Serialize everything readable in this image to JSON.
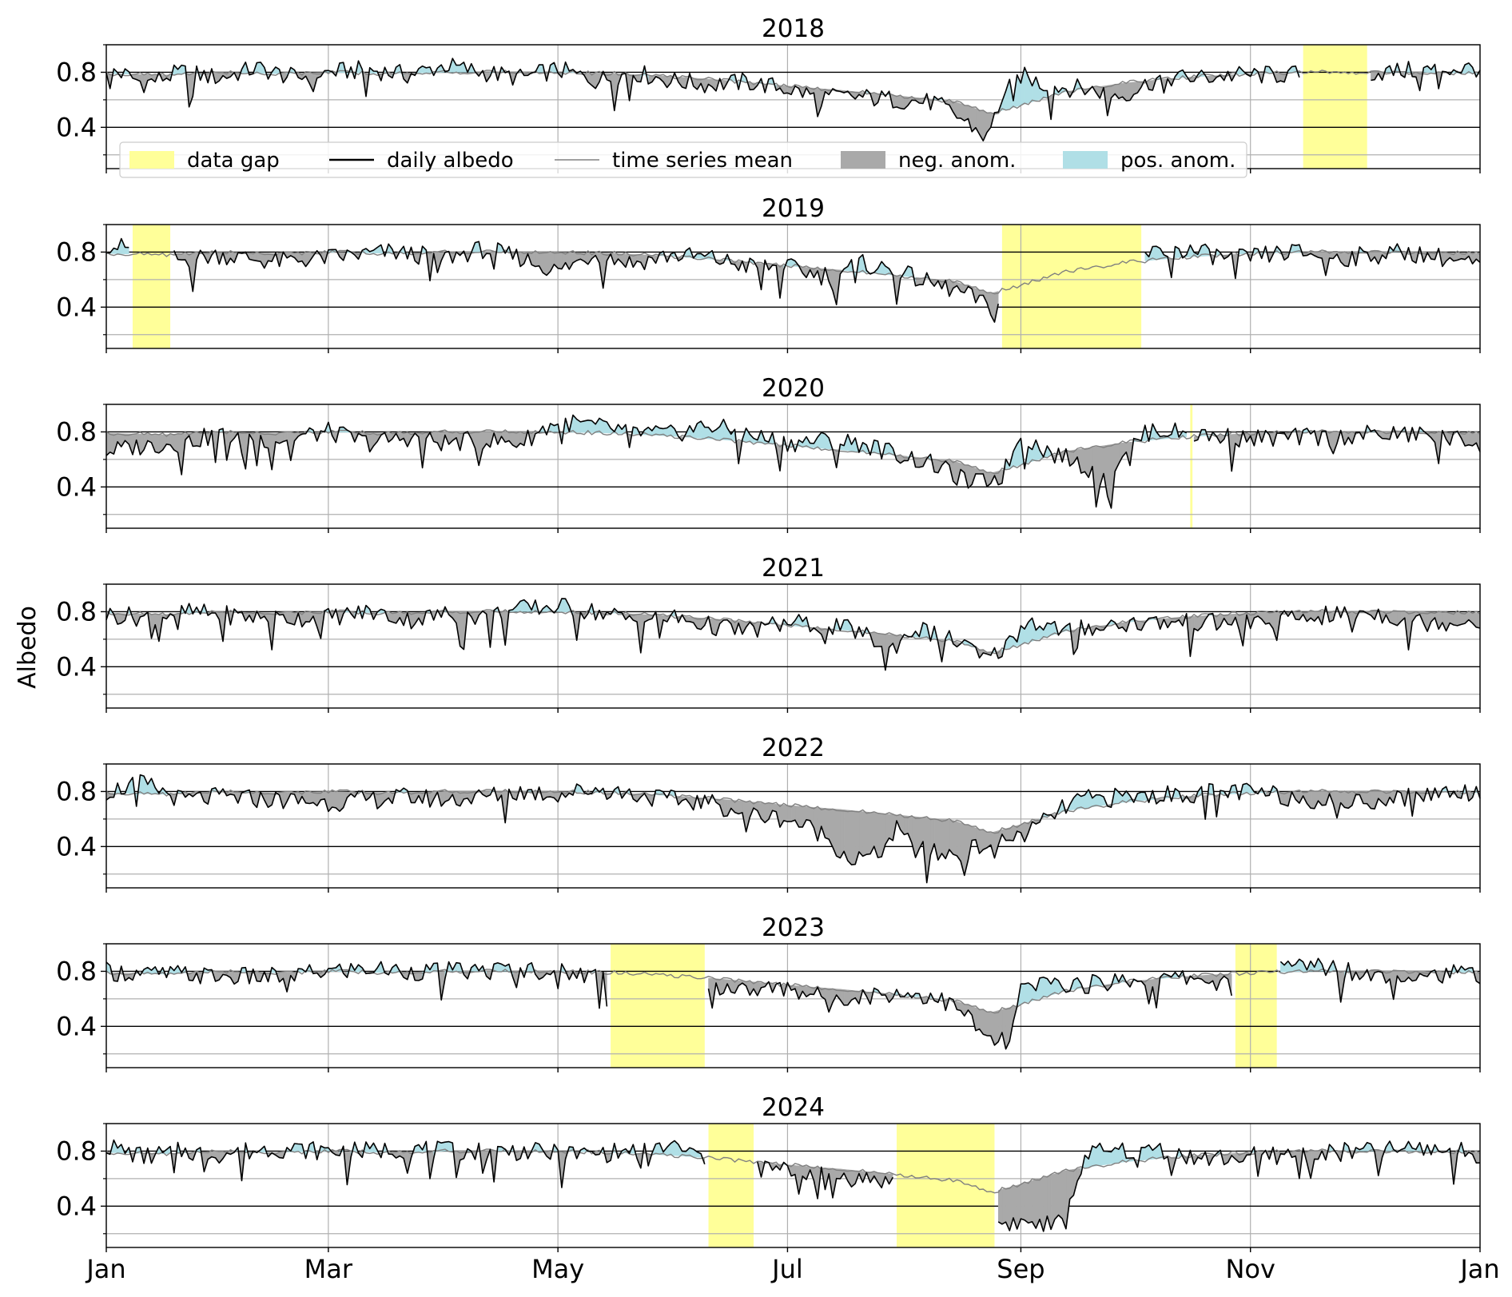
{
  "figure": {
    "ylabel": "Albedo",
    "month_ticks": [
      "Jan",
      "Mar",
      "May",
      "Jul",
      "Sep",
      "Nov",
      "Jan"
    ],
    "month_tick_days": [
      0,
      59,
      120,
      181,
      243,
      304,
      365
    ],
    "ytick_labels": [
      "0.8",
      "0.4"
    ],
    "ytick_values": [
      0.8,
      0.4
    ],
    "minor_grid_values": [
      0.2,
      0.6,
      1.0
    ],
    "ylim": [
      0.1,
      1.0
    ]
  },
  "legend": {
    "placement": "inside first panel, lower area",
    "items": [
      {
        "key": "gap",
        "label": "data gap"
      },
      {
        "key": "daily",
        "label": "daily albedo"
      },
      {
        "key": "mean",
        "label": "time series mean"
      },
      {
        "key": "neg",
        "label": "neg. anom."
      },
      {
        "key": "pos",
        "label": "pos. anom."
      }
    ]
  },
  "colors": {
    "gap": "#ffff99",
    "daily": "#000000",
    "mean": "#808080",
    "neg": "#a9a9a9",
    "pos": "#b0dfe6",
    "grid": "#b0b0b0"
  },
  "chart_data": {
    "type": "area",
    "xlabel": "",
    "ylabel": "Albedo",
    "x_unit": "day of year",
    "ylim": [
      0.1,
      1.0
    ],
    "grid": true,
    "mean_series": [
      [
        0,
        0.79
      ],
      [
        15,
        0.78
      ],
      [
        30,
        0.8
      ],
      [
        45,
        0.79
      ],
      [
        59,
        0.8
      ],
      [
        75,
        0.79
      ],
      [
        90,
        0.8
      ],
      [
        105,
        0.8
      ],
      [
        120,
        0.8
      ],
      [
        135,
        0.79
      ],
      [
        150,
        0.77
      ],
      [
        165,
        0.74
      ],
      [
        181,
        0.7
      ],
      [
        195,
        0.67
      ],
      [
        210,
        0.63
      ],
      [
        225,
        0.59
      ],
      [
        235,
        0.5
      ],
      [
        243,
        0.56
      ],
      [
        255,
        0.66
      ],
      [
        270,
        0.72
      ],
      [
        285,
        0.76
      ],
      [
        304,
        0.79
      ],
      [
        320,
        0.8
      ],
      [
        335,
        0.8
      ],
      [
        350,
        0.8
      ],
      [
        365,
        0.79
      ]
    ],
    "panels": [
      {
        "year": "2018",
        "gaps": [
          [
            318,
            335
          ]
        ],
        "daily": [
          [
            0,
            0.84
          ],
          [
            10,
            0.72
          ],
          [
            20,
            0.8
          ],
          [
            30,
            0.76
          ],
          [
            40,
            0.83
          ],
          [
            50,
            0.76
          ],
          [
            59,
            0.8
          ],
          [
            70,
            0.82
          ],
          [
            80,
            0.78
          ],
          [
            90,
            0.85
          ],
          [
            100,
            0.8
          ],
          [
            110,
            0.76
          ],
          [
            120,
            0.82
          ],
          [
            130,
            0.74
          ],
          [
            140,
            0.8
          ],
          [
            150,
            0.74
          ],
          [
            160,
            0.71
          ],
          [
            170,
            0.73
          ],
          [
            181,
            0.68
          ],
          [
            190,
            0.62
          ],
          [
            200,
            0.62
          ],
          [
            210,
            0.6
          ],
          [
            220,
            0.58
          ],
          [
            228,
            0.45
          ],
          [
            234,
            0.32
          ],
          [
            238,
            0.62
          ],
          [
            243,
            0.78
          ],
          [
            250,
            0.7
          ],
          [
            260,
            0.68
          ],
          [
            270,
            0.63
          ],
          [
            280,
            0.76
          ],
          [
            290,
            0.76
          ],
          [
            300,
            0.78
          ],
          [
            310,
            0.78
          ],
          [
            340,
            0.8
          ],
          [
            350,
            0.82
          ],
          [
            365,
            0.83
          ]
        ]
      },
      {
        "year": "2019",
        "gaps": [
          [
            7,
            17
          ],
          [
            238,
            275
          ]
        ],
        "daily": [
          [
            0,
            0.86
          ],
          [
            20,
            0.74
          ],
          [
            30,
            0.78
          ],
          [
            45,
            0.73
          ],
          [
            59,
            0.76
          ],
          [
            75,
            0.8
          ],
          [
            90,
            0.76
          ],
          [
            100,
            0.82
          ],
          [
            110,
            0.76
          ],
          [
            120,
            0.66
          ],
          [
            130,
            0.79
          ],
          [
            140,
            0.72
          ],
          [
            150,
            0.78
          ],
          [
            160,
            0.76
          ],
          [
            170,
            0.7
          ],
          [
            181,
            0.69
          ],
          [
            190,
            0.63
          ],
          [
            200,
            0.72
          ],
          [
            210,
            0.66
          ],
          [
            218,
            0.58
          ],
          [
            226,
            0.52
          ],
          [
            232,
            0.45
          ],
          [
            236,
            0.35
          ],
          [
            238,
            0.48
          ],
          [
            275,
            0.78
          ],
          [
            285,
            0.82
          ],
          [
            300,
            0.75
          ],
          [
            315,
            0.8
          ],
          [
            330,
            0.76
          ],
          [
            345,
            0.8
          ],
          [
            355,
            0.76
          ],
          [
            365,
            0.7
          ]
        ]
      },
      {
        "year": "2020",
        "gaps": [
          [
            288,
            288.6
          ]
        ],
        "daily": [
          [
            0,
            0.66
          ],
          [
            10,
            0.7
          ],
          [
            20,
            0.72
          ],
          [
            30,
            0.78
          ],
          [
            45,
            0.74
          ],
          [
            59,
            0.8
          ],
          [
            70,
            0.72
          ],
          [
            80,
            0.76
          ],
          [
            90,
            0.72
          ],
          [
            100,
            0.74
          ],
          [
            110,
            0.72
          ],
          [
            120,
            0.88
          ],
          [
            130,
            0.84
          ],
          [
            140,
            0.8
          ],
          [
            150,
            0.78
          ],
          [
            160,
            0.85
          ],
          [
            170,
            0.78
          ],
          [
            181,
            0.72
          ],
          [
            190,
            0.74
          ],
          [
            200,
            0.72
          ],
          [
            210,
            0.64
          ],
          [
            220,
            0.56
          ],
          [
            230,
            0.42
          ],
          [
            238,
            0.48
          ],
          [
            243,
            0.78
          ],
          [
            250,
            0.66
          ],
          [
            256,
            0.6
          ],
          [
            262,
            0.52
          ],
          [
            266,
            0.4
          ],
          [
            270,
            0.66
          ],
          [
            278,
            0.82
          ],
          [
            290,
            0.78
          ],
          [
            304,
            0.75
          ],
          [
            320,
            0.76
          ],
          [
            335,
            0.78
          ],
          [
            350,
            0.78
          ],
          [
            365,
            0.72
          ]
        ]
      },
      {
        "year": "2021",
        "gaps": [],
        "daily": [
          [
            0,
            0.78
          ],
          [
            10,
            0.76
          ],
          [
            20,
            0.8
          ],
          [
            30,
            0.78
          ],
          [
            45,
            0.75
          ],
          [
            59,
            0.76
          ],
          [
            70,
            0.8
          ],
          [
            80,
            0.74
          ],
          [
            90,
            0.78
          ],
          [
            100,
            0.76
          ],
          [
            110,
            0.82
          ],
          [
            120,
            0.84
          ],
          [
            130,
            0.8
          ],
          [
            140,
            0.74
          ],
          [
            150,
            0.76
          ],
          [
            160,
            0.7
          ],
          [
            170,
            0.66
          ],
          [
            181,
            0.72
          ],
          [
            190,
            0.7
          ],
          [
            200,
            0.66
          ],
          [
            208,
            0.52
          ],
          [
            215,
            0.68
          ],
          [
            222,
            0.62
          ],
          [
            228,
            0.56
          ],
          [
            234,
            0.44
          ],
          [
            240,
            0.58
          ],
          [
            245,
            0.74
          ],
          [
            255,
            0.66
          ],
          [
            265,
            0.7
          ],
          [
            275,
            0.72
          ],
          [
            290,
            0.72
          ],
          [
            304,
            0.72
          ],
          [
            320,
            0.76
          ],
          [
            335,
            0.8
          ],
          [
            350,
            0.72
          ],
          [
            365,
            0.74
          ]
        ]
      },
      {
        "year": "2022",
        "gaps": [],
        "daily": [
          [
            0,
            0.8
          ],
          [
            10,
            0.86
          ],
          [
            20,
            0.74
          ],
          [
            30,
            0.76
          ],
          [
            45,
            0.74
          ],
          [
            59,
            0.72
          ],
          [
            70,
            0.74
          ],
          [
            80,
            0.76
          ],
          [
            90,
            0.74
          ],
          [
            100,
            0.76
          ],
          [
            110,
            0.8
          ],
          [
            120,
            0.78
          ],
          [
            130,
            0.82
          ],
          [
            140,
            0.78
          ],
          [
            150,
            0.74
          ],
          [
            160,
            0.72
          ],
          [
            170,
            0.64
          ],
          [
            181,
            0.6
          ],
          [
            190,
            0.5
          ],
          [
            198,
            0.3
          ],
          [
            205,
            0.34
          ],
          [
            210,
            0.52
          ],
          [
            215,
            0.38
          ],
          [
            222,
            0.34
          ],
          [
            228,
            0.36
          ],
          [
            234,
            0.42
          ],
          [
            240,
            0.46
          ],
          [
            245,
            0.5
          ],
          [
            250,
            0.6
          ],
          [
            258,
            0.74
          ],
          [
            270,
            0.76
          ],
          [
            285,
            0.78
          ],
          [
            300,
            0.8
          ],
          [
            315,
            0.76
          ],
          [
            330,
            0.72
          ],
          [
            345,
            0.76
          ],
          [
            355,
            0.8
          ],
          [
            365,
            0.8
          ]
        ]
      },
      {
        "year": "2023",
        "gaps": [
          [
            134,
            159
          ],
          [
            300,
            311
          ]
        ],
        "daily": [
          [
            0,
            0.8
          ],
          [
            10,
            0.78
          ],
          [
            20,
            0.78
          ],
          [
            30,
            0.76
          ],
          [
            45,
            0.76
          ],
          [
            59,
            0.8
          ],
          [
            70,
            0.82
          ],
          [
            80,
            0.8
          ],
          [
            90,
            0.8
          ],
          [
            100,
            0.8
          ],
          [
            110,
            0.82
          ],
          [
            120,
            0.8
          ],
          [
            134,
            0.76
          ],
          [
            159,
            0.7
          ],
          [
            170,
            0.66
          ],
          [
            181,
            0.68
          ],
          [
            190,
            0.62
          ],
          [
            200,
            0.62
          ],
          [
            210,
            0.64
          ],
          [
            220,
            0.62
          ],
          [
            228,
            0.5
          ],
          [
            234,
            0.3
          ],
          [
            240,
            0.28
          ],
          [
            243,
            0.66
          ],
          [
            250,
            0.72
          ],
          [
            260,
            0.7
          ],
          [
            270,
            0.74
          ],
          [
            280,
            0.74
          ],
          [
            290,
            0.76
          ],
          [
            300,
            0.68
          ],
          [
            311,
            0.82
          ],
          [
            320,
            0.86
          ],
          [
            335,
            0.78
          ],
          [
            350,
            0.78
          ],
          [
            365,
            0.78
          ]
        ]
      },
      {
        "year": "2024",
        "gaps": [
          [
            160,
            172
          ],
          [
            210,
            236
          ]
        ],
        "daily": [
          [
            0,
            0.84
          ],
          [
            10,
            0.76
          ],
          [
            20,
            0.8
          ],
          [
            30,
            0.78
          ],
          [
            45,
            0.82
          ],
          [
            59,
            0.8
          ],
          [
            70,
            0.8
          ],
          [
            80,
            0.82
          ],
          [
            90,
            0.8
          ],
          [
            100,
            0.8
          ],
          [
            110,
            0.8
          ],
          [
            120,
            0.78
          ],
          [
            130,
            0.78
          ],
          [
            140,
            0.8
          ],
          [
            150,
            0.84
          ],
          [
            160,
            0.74
          ],
          [
            172,
            0.68
          ],
          [
            181,
            0.66
          ],
          [
            190,
            0.64
          ],
          [
            200,
            0.6
          ],
          [
            210,
            0.58
          ],
          [
            236,
            0.28
          ],
          [
            243,
            0.28
          ],
          [
            252,
            0.26
          ],
          [
            255,
            0.3
          ],
          [
            260,
            0.78
          ],
          [
            270,
            0.8
          ],
          [
            280,
            0.82
          ],
          [
            290,
            0.74
          ],
          [
            304,
            0.76
          ],
          [
            320,
            0.78
          ],
          [
            335,
            0.8
          ],
          [
            350,
            0.82
          ],
          [
            365,
            0.78
          ]
        ]
      }
    ]
  }
}
